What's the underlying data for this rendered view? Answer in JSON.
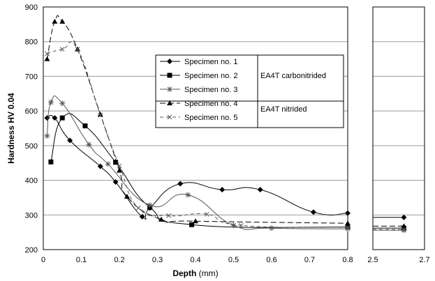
{
  "chart_data": {
    "type": "line",
    "xlabel": "Depth",
    "xlabel_unit": "(mm)",
    "ylabel": "Hardness HV 0.04",
    "ylim": [
      200,
      900
    ],
    "yticks": [
      "200",
      "300",
      "400",
      "500",
      "600",
      "700",
      "800",
      "900"
    ],
    "xlim_main": [
      0,
      0.8
    ],
    "xticks_main": [
      "0",
      "0.1",
      "0.2",
      "0.3",
      "0.4",
      "0.5",
      "0.6",
      "0.7",
      "0.8"
    ],
    "xlim_right": [
      2.5,
      2.7
    ],
    "xticks_right": [
      "2.5",
      "2.7"
    ],
    "grid": "horizontal",
    "legend_groups": [
      {
        "label": "EA4T carbonitrided",
        "series": [
          0,
          1,
          2
        ]
      },
      {
        "label": "EA4T nitrided",
        "series": [
          3,
          4
        ]
      }
    ],
    "series": [
      {
        "name": "Specimen no. 1",
        "marker": "diamond",
        "dash": "",
        "points": [
          [
            0.01,
            580
          ],
          [
            0.03,
            580
          ],
          [
            0.07,
            515
          ],
          [
            0.15,
            440
          ],
          [
            0.19,
            395
          ],
          [
            0.26,
            295
          ],
          [
            0.28,
            320
          ],
          [
            0.36,
            390
          ],
          [
            0.47,
            373
          ],
          [
            0.57,
            373
          ],
          [
            0.71,
            308
          ],
          [
            0.8,
            305
          ],
          [
            2.62,
            293
          ]
        ]
      },
      {
        "name": "Specimen no. 2",
        "marker": "square",
        "dash": "",
        "points": [
          [
            0.02,
            453
          ],
          [
            0.05,
            580
          ],
          [
            0.11,
            557
          ],
          [
            0.19,
            452
          ],
          [
            0.28,
            322
          ],
          [
            0.39,
            272
          ],
          [
            0.8,
            265
          ],
          [
            2.62,
            262
          ]
        ]
      },
      {
        "name": "Specimen no. 3",
        "marker": "star",
        "dash": "",
        "points": [
          [
            0.01,
            528
          ],
          [
            0.02,
            625
          ],
          [
            0.05,
            622
          ],
          [
            0.12,
            503
          ],
          [
            0.17,
            447
          ],
          [
            0.28,
            328
          ],
          [
            0.38,
            358
          ],
          [
            0.5,
            270
          ],
          [
            0.6,
            262
          ],
          [
            0.8,
            260
          ],
          [
            2.62,
            256
          ]
        ]
      },
      {
        "name": "Specimen no. 4",
        "marker": "triangle",
        "dash": "8,4",
        "points": [
          [
            0.01,
            750
          ],
          [
            0.03,
            858
          ],
          [
            0.05,
            858
          ],
          [
            0.09,
            778
          ],
          [
            0.15,
            590
          ],
          [
            0.2,
            428
          ],
          [
            0.22,
            353
          ],
          [
            0.31,
            287
          ],
          [
            0.4,
            282
          ],
          [
            0.8,
            276
          ],
          [
            2.62,
            268
          ]
        ]
      },
      {
        "name": "Specimen no. 5",
        "marker": "x",
        "dash": "5,4",
        "points": [
          [
            0.01,
            765
          ],
          [
            0.05,
            778
          ],
          [
            0.09,
            778
          ],
          [
            0.15,
            588
          ],
          [
            0.2,
            442
          ],
          [
            0.25,
            320
          ],
          [
            0.33,
            298
          ],
          [
            0.43,
            302
          ],
          [
            0.52,
            270
          ],
          [
            0.8,
            264
          ],
          [
            2.62,
            258
          ]
        ]
      }
    ]
  }
}
